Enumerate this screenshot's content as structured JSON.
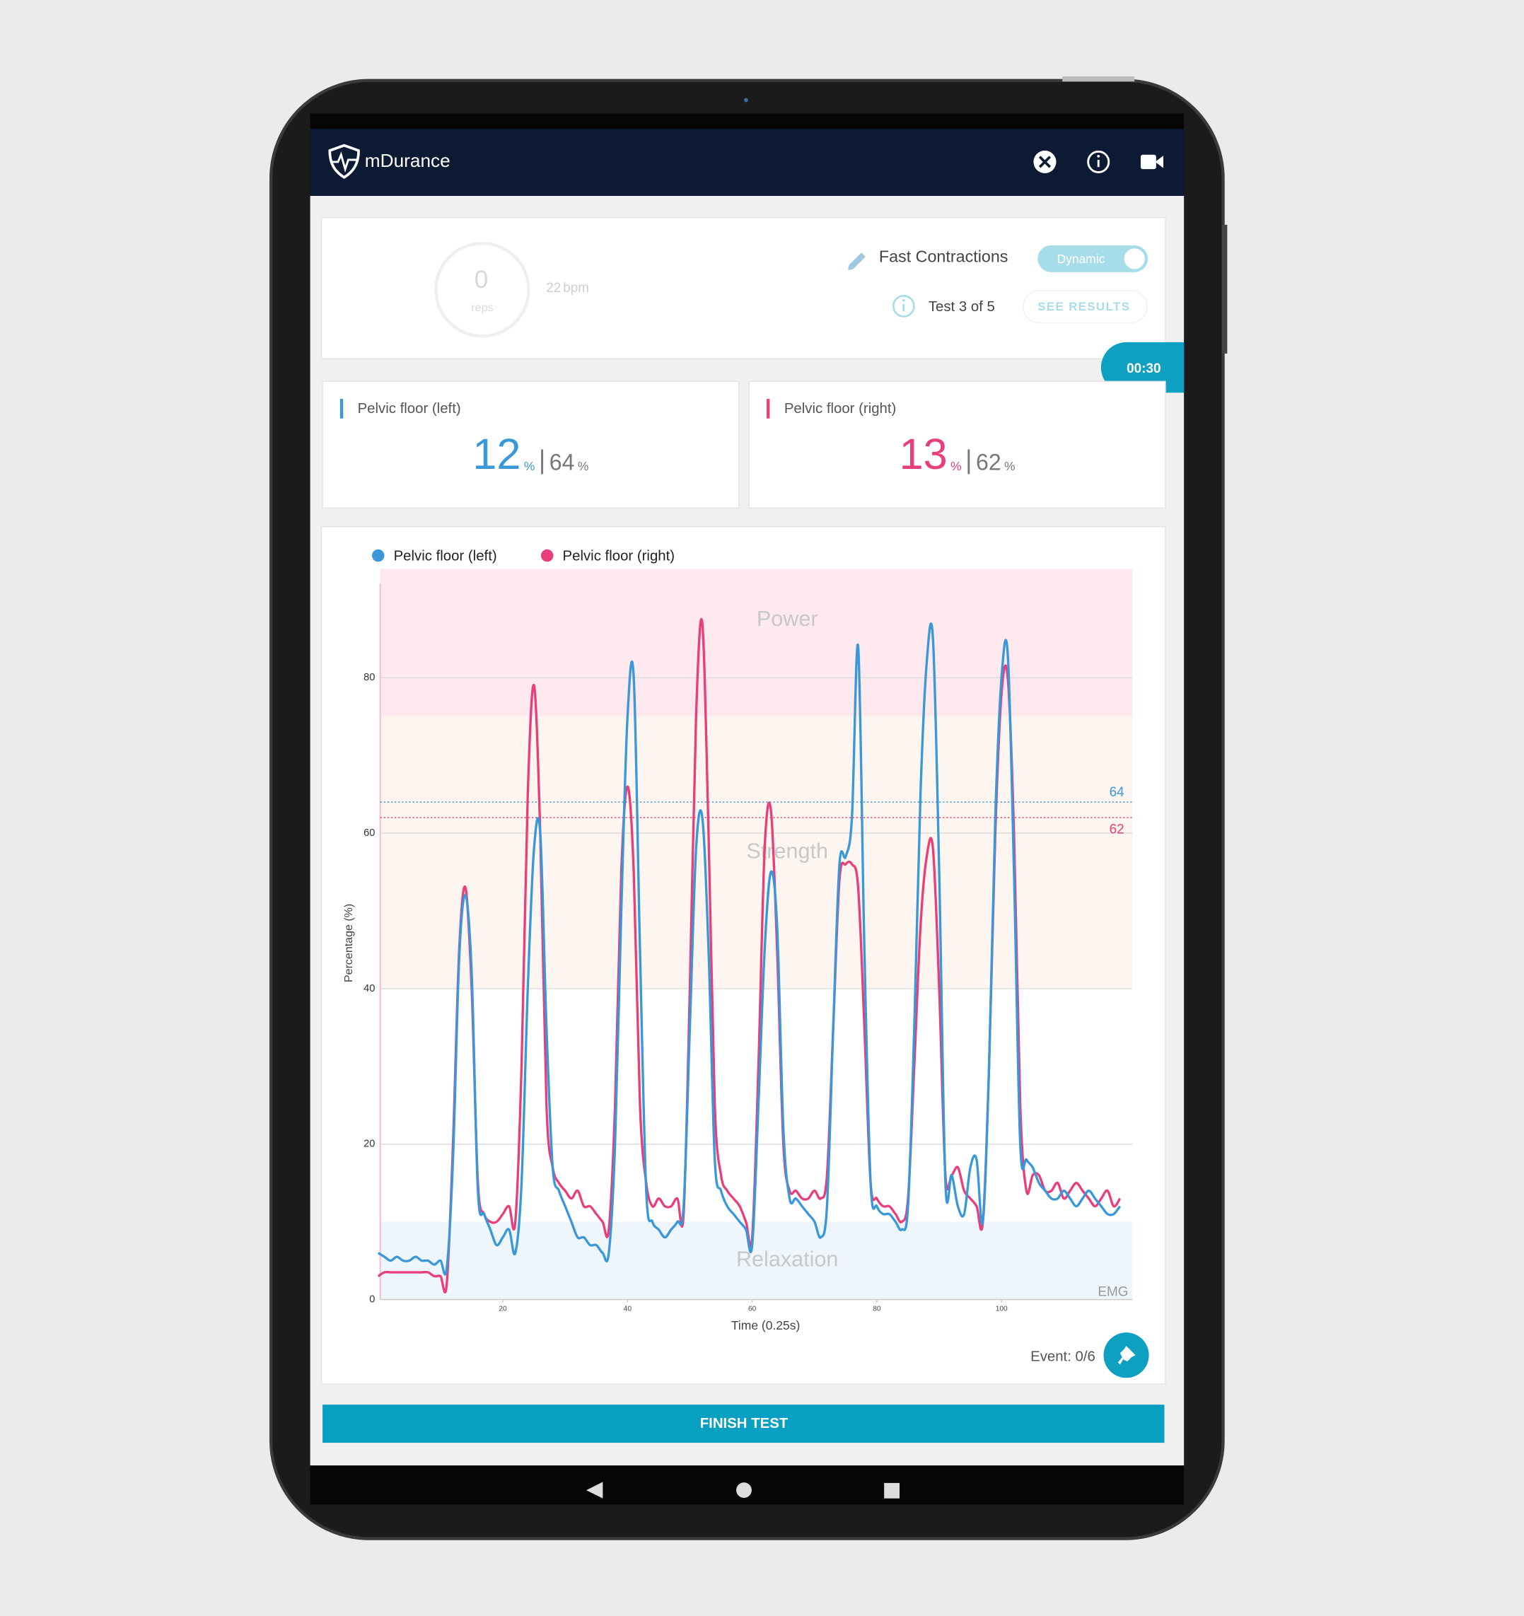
{
  "header": {
    "brand": "mDurance"
  },
  "session": {
    "reps": 0,
    "reps_label": "reps",
    "rate": 22,
    "rate_unit": "bpm",
    "exercise": "Fast Contractions",
    "mode": "Dynamic",
    "test": "Test 3 of 5",
    "see_results": "SEE RESULTS",
    "timer": "00:30"
  },
  "cards": [
    {
      "name": "Pelvic floor (left)",
      "current": 12,
      "max": 64,
      "unit": "%",
      "color": "#3a97d9"
    },
    {
      "name": "Pelvic floor (right)",
      "current": 13,
      "max": 62,
      "unit": "%",
      "color": "#e83e7a"
    }
  ],
  "chart_data": {
    "type": "line",
    "x": [
      0,
      1,
      2,
      3,
      4,
      5,
      6,
      7,
      8,
      9,
      10,
      11,
      12,
      13,
      14,
      15,
      16,
      17,
      18,
      19,
      20,
      21,
      22,
      23,
      24,
      25,
      26,
      27,
      28,
      29,
      30,
      31,
      32,
      33,
      34,
      35,
      36,
      37,
      38,
      39,
      40,
      41,
      42,
      43,
      44,
      45,
      46,
      47,
      48,
      49,
      50,
      51,
      52,
      53,
      54,
      55,
      56,
      57,
      58,
      59,
      60,
      61,
      62,
      63,
      64,
      65,
      66,
      67,
      68,
      69,
      70,
      71,
      72,
      73,
      74,
      75,
      76,
      77,
      78,
      79,
      80,
      81,
      82,
      83,
      84,
      85,
      86,
      87,
      88,
      89,
      90,
      91,
      92,
      93,
      94,
      95,
      96,
      97,
      98,
      99,
      100,
      101,
      102,
      103,
      104,
      105,
      106,
      107,
      108,
      109,
      110,
      111,
      112,
      113,
      114,
      115,
      116,
      117,
      118,
      119
    ],
    "series": [
      {
        "name": "Pelvic floor (left)",
        "color": "#3a97d9",
        "values": [
          6,
          5.5,
          5,
          5.5,
          5,
          5,
          5.5,
          5,
          5,
          4.5,
          5,
          4,
          18,
          44,
          52,
          42,
          14,
          11,
          9,
          7,
          8,
          9,
          6,
          15,
          40,
          58,
          60,
          35,
          17,
          14,
          12,
          10,
          8,
          8,
          7,
          7,
          6,
          6,
          20,
          50,
          75,
          80,
          45,
          14,
          10,
          9,
          8,
          9,
          10,
          12,
          35,
          58,
          62,
          45,
          18,
          14,
          12,
          11,
          10,
          9,
          7,
          25,
          45,
          55,
          48,
          22,
          13,
          13,
          12,
          11,
          10,
          8,
          12,
          35,
          56,
          57,
          62,
          84,
          45,
          15,
          12,
          11,
          11,
          10,
          9,
          12,
          35,
          65,
          82,
          85,
          55,
          15,
          16,
          12,
          11,
          17,
          18,
          10,
          30,
          62,
          80,
          83,
          55,
          20,
          18,
          17,
          15,
          14,
          13,
          13,
          14,
          13,
          12,
          13,
          14,
          13,
          12,
          11,
          11,
          12
        ]
      },
      {
        "name": "Pelvic floor (right)",
        "color": "#e83e7a",
        "values": [
          3,
          3.5,
          3.5,
          3.5,
          3.5,
          3.5,
          3.5,
          3.5,
          3.5,
          3,
          3,
          2,
          20,
          45,
          53,
          40,
          15,
          11,
          10,
          10,
          11,
          12,
          10,
          30,
          65,
          79,
          60,
          25,
          17,
          15,
          14,
          13,
          14,
          12,
          12,
          11,
          10,
          9,
          25,
          55,
          66,
          55,
          25,
          15,
          12,
          13,
          12,
          12,
          13,
          11,
          40,
          75,
          87,
          60,
          25,
          16,
          14,
          13,
          12,
          10,
          8,
          30,
          58,
          63,
          45,
          20,
          14,
          14,
          13,
          13,
          14,
          13,
          16,
          35,
          54,
          56,
          56,
          53,
          35,
          15,
          13,
          12,
          12,
          11,
          10,
          13,
          30,
          48,
          57,
          58,
          40,
          16,
          16,
          17,
          14,
          13,
          12,
          10,
          30,
          60,
          78,
          80,
          60,
          25,
          14,
          16,
          16,
          14,
          14,
          15,
          13,
          14,
          15,
          14,
          13,
          12,
          13,
          14,
          12,
          13
        ]
      }
    ],
    "xlim": [
      0,
      121
    ],
    "xticks": [
      20,
      40,
      60,
      80,
      100
    ],
    "ylim": [
      0,
      94
    ],
    "yticks": [
      0,
      20,
      40,
      60,
      80
    ],
    "grid": true,
    "xlabel": "Time (0.25s)",
    "ylabel": "Percentage (%)",
    "zones": [
      {
        "label": "Power",
        "from": 75,
        "to": 94,
        "color": "#fde9ee"
      },
      {
        "label": "Strength",
        "from": 40,
        "to": 75,
        "color": "#fdf6f0"
      },
      {
        "label": "Relaxation",
        "from": 0,
        "to": 10,
        "color": "#eef5fb"
      }
    ],
    "reference_lines": [
      {
        "value": 64,
        "color": "#3a97d9"
      },
      {
        "value": 62,
        "color": "#e83e7a"
      }
    ],
    "annotation": "EMG"
  },
  "footer": {
    "event": "Event: 0/6",
    "finish": "FINISH TEST"
  }
}
